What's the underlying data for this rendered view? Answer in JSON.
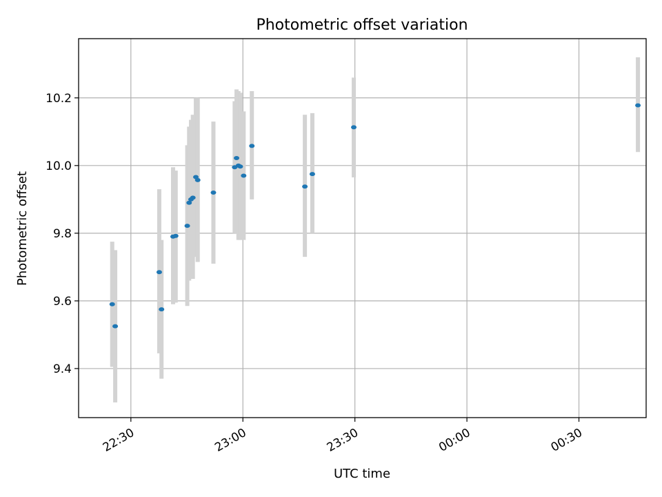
{
  "chart_data": {
    "type": "scatter",
    "title": "Photometric offset variation",
    "xlabel": "UTC time",
    "ylabel": "Photometric offset",
    "grid": true,
    "colors": {
      "marker": "#1f77b4",
      "errorbar": "#d3d3d3",
      "grid": "#b0b0b0",
      "axes": "#000000"
    },
    "x_axis": {
      "ticks": [
        {
          "minutes": 30,
          "label": "22:30"
        },
        {
          "minutes": 60,
          "label": "23:00"
        },
        {
          "minutes": 90,
          "label": "23:30"
        },
        {
          "minutes": 120,
          "label": "00:00"
        },
        {
          "minutes": 150,
          "label": "00:30"
        }
      ],
      "xlim_minutes": [
        16,
        168
      ],
      "tick_label_rotation_deg": 30
    },
    "y_axis": {
      "ticks": [
        9.4,
        9.6,
        9.8,
        10.0,
        10.2
      ],
      "tick_labels": [
        "9.4",
        "9.6",
        "9.8",
        "10.0",
        "10.2"
      ],
      "ylim": [
        9.255,
        10.375
      ]
    },
    "series": [
      {
        "marker_color": "#1f77b4",
        "errorbar_color": "#d3d3d3",
        "points": [
          {
            "time": "22:25:00",
            "minutes": 25.0,
            "y": 9.59,
            "ylo": 9.405,
            "yhi": 9.775
          },
          {
            "time": "22:25:50",
            "minutes": 25.8,
            "y": 9.525,
            "ylo": 9.3,
            "yhi": 9.75
          },
          {
            "time": "22:37:35",
            "minutes": 37.6,
            "y": 9.685,
            "ylo": 9.445,
            "yhi": 9.93
          },
          {
            "time": "22:38:10",
            "minutes": 38.2,
            "y": 9.575,
            "ylo": 9.37,
            "yhi": 9.78
          },
          {
            "time": "22:41:15",
            "minutes": 41.3,
            "y": 9.79,
            "ylo": 9.59,
            "yhi": 9.995
          },
          {
            "time": "22:42:00",
            "minutes": 42.0,
            "y": 9.792,
            "ylo": 9.595,
            "yhi": 9.985
          },
          {
            "time": "22:45:05",
            "minutes": 45.1,
            "y": 9.822,
            "ylo": 9.585,
            "yhi": 10.06
          },
          {
            "time": "22:45:35",
            "minutes": 45.6,
            "y": 9.89,
            "ylo": 9.66,
            "yhi": 10.115
          },
          {
            "time": "22:46:05",
            "minutes": 46.1,
            "y": 9.9,
            "ylo": 9.665,
            "yhi": 10.135
          },
          {
            "time": "22:46:35",
            "minutes": 46.6,
            "y": 9.905,
            "ylo": 9.665,
            "yhi": 10.15
          },
          {
            "time": "22:47:25",
            "minutes": 47.4,
            "y": 9.966,
            "ylo": 9.73,
            "yhi": 10.2
          },
          {
            "time": "22:47:55",
            "minutes": 47.9,
            "y": 9.957,
            "ylo": 9.715,
            "yhi": 10.2
          },
          {
            "time": "22:52:05",
            "minutes": 52.1,
            "y": 9.92,
            "ylo": 9.71,
            "yhi": 10.13
          },
          {
            "time": "22:57:50",
            "minutes": 57.8,
            "y": 9.995,
            "ylo": 9.8,
            "yhi": 10.19
          },
          {
            "time": "22:58:20",
            "minutes": 58.3,
            "y": 10.022,
            "ylo": 9.8,
            "yhi": 10.225
          },
          {
            "time": "22:58:50",
            "minutes": 58.8,
            "y": 10.0,
            "ylo": 9.78,
            "yhi": 10.22
          },
          {
            "time": "22:59:20",
            "minutes": 59.3,
            "y": 9.997,
            "ylo": 9.78,
            "yhi": 10.215
          },
          {
            "time": "23:00:10",
            "minutes": 60.2,
            "y": 9.97,
            "ylo": 9.78,
            "yhi": 10.16
          },
          {
            "time": "23:02:25",
            "minutes": 62.4,
            "y": 10.058,
            "ylo": 9.9,
            "yhi": 10.22
          },
          {
            "time": "23:16:35",
            "minutes": 76.6,
            "y": 9.938,
            "ylo": 9.73,
            "yhi": 10.15
          },
          {
            "time": "23:18:35",
            "minutes": 78.6,
            "y": 9.975,
            "ylo": 9.8,
            "yhi": 10.155
          },
          {
            "time": "23:29:40",
            "minutes": 89.7,
            "y": 10.113,
            "ylo": 9.965,
            "yhi": 10.26
          },
          {
            "time": "00:45:50",
            "minutes": 165.8,
            "y": 10.178,
            "ylo": 10.04,
            "yhi": 10.32
          }
        ]
      }
    ]
  }
}
